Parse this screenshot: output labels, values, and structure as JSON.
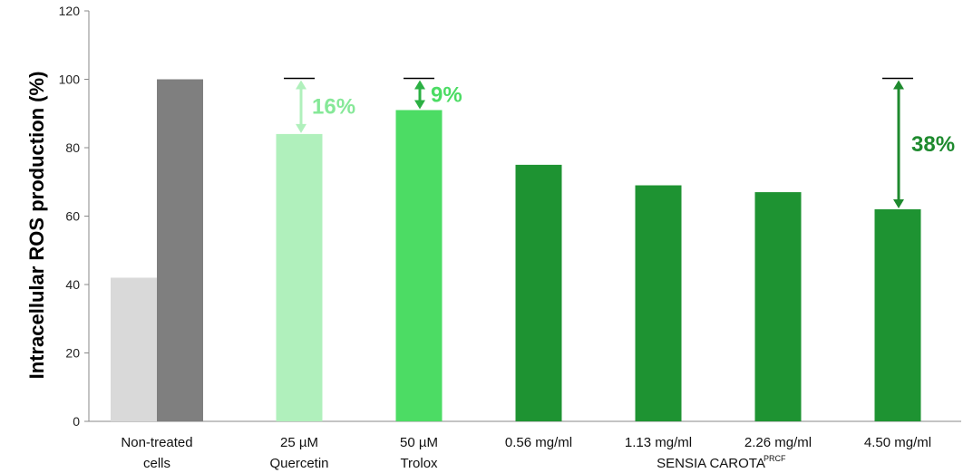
{
  "chart_data": {
    "type": "bar",
    "title": "",
    "xlabel": "",
    "ylabel": "Intracellular ROS production (%)",
    "ylim": [
      0,
      120
    ],
    "yticks": [
      0,
      20,
      40,
      60,
      80,
      100,
      120
    ],
    "grid": false,
    "legend": "none",
    "categories": [
      {
        "lines": [
          "Non-treated",
          "cells"
        ]
      },
      {
        "lines": [
          "25 µM",
          "Quercetin"
        ]
      },
      {
        "lines": [
          "50 µM",
          "Trolox"
        ]
      },
      {
        "lines": [
          "0.56 mg/ml"
        ]
      },
      {
        "lines": [
          "1.13 mg/ml"
        ]
      },
      {
        "lines": [
          "2.26 mg/ml"
        ]
      },
      {
        "lines": [
          "4.50 mg/ml"
        ]
      }
    ],
    "group_label": {
      "text": "SENSIA CAROTA",
      "superscript": "PRCF"
    },
    "bars": [
      {
        "category": 0,
        "value": 42,
        "color": "#d9d9d9"
      },
      {
        "category": 0,
        "value": 100,
        "color": "#7f7f7f"
      },
      {
        "category": 1,
        "value": 84,
        "color": "#b0f0bc"
      },
      {
        "category": 2,
        "value": 91,
        "color": "#4cdc64"
      },
      {
        "category": 3,
        "value": 75,
        "color": "#1e9332"
      },
      {
        "category": 4,
        "value": 69,
        "color": "#1e9332"
      },
      {
        "category": 5,
        "value": 67,
        "color": "#1e9332"
      },
      {
        "category": 6,
        "value": 62,
        "color": "#1e9332"
      }
    ],
    "annotations": [
      {
        "category": 1,
        "from": 84,
        "to": 100,
        "label": "16%",
        "color": "#b0f0bc",
        "text_color": "#86e898"
      },
      {
        "category": 2,
        "from": 91,
        "to": 100,
        "label": "9%",
        "color": "#2bb043",
        "text_color": "#4cdc64"
      },
      {
        "category": 6,
        "from": 62,
        "to": 100,
        "label": "38%",
        "color": "#1e8a2e",
        "text_color": "#1e8a2e"
      }
    ]
  }
}
